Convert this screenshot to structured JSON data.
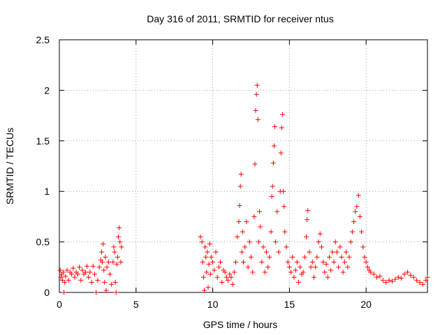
{
  "chart_data": {
    "type": "scatter",
    "title": "Day 316 of 2011, SRMTID for receiver ntus",
    "xlabel": "GPS time / hours",
    "ylabel": "SRMTID / TECUs",
    "xlim": [
      0,
      24
    ],
    "ylim": [
      0,
      2.5
    ],
    "x_ticks": [
      0,
      5,
      10,
      15,
      20
    ],
    "x_tick_labels": [
      "0",
      "5",
      "10",
      "15",
      "20"
    ],
    "y_ticks": [
      0,
      0.5,
      1,
      1.5,
      2,
      2.5
    ],
    "y_tick_labels": [
      "0",
      "0.5",
      "1",
      "1.5",
      "2",
      "2.5"
    ],
    "grid": true,
    "marker": "+",
    "colors": {
      "marker": "#ff0000",
      "grid": "#a0a0a0",
      "axis": "#000000"
    },
    "series": [
      {
        "name": "SRMTID",
        "points": [
          [
            0.05,
            0.22
          ],
          [
            0.1,
            0.15
          ],
          [
            0.15,
            0.18
          ],
          [
            0.2,
            0.12
          ],
          [
            0.25,
            0.2
          ],
          [
            0.3,
            0.0
          ],
          [
            0.35,
            0.1
          ],
          [
            0.4,
            0.16
          ],
          [
            0.5,
            0.22
          ],
          [
            0.6,
            0.12
          ],
          [
            0.7,
            0.2
          ],
          [
            0.8,
            0.18
          ],
          [
            0.9,
            0.24
          ],
          [
            1.0,
            0.15
          ],
          [
            1.1,
            0.2
          ],
          [
            1.2,
            0.18
          ],
          [
            1.3,
            0.25
          ],
          [
            1.4,
            0.12
          ],
          [
            1.5,
            0.22
          ],
          [
            1.6,
            0.18
          ],
          [
            1.7,
            0.2
          ],
          [
            1.8,
            0.26
          ],
          [
            1.9,
            0.15
          ],
          [
            2.0,
            0.2
          ],
          [
            2.1,
            0.1
          ],
          [
            2.2,
            0.26
          ],
          [
            2.3,
            0.18
          ],
          [
            2.4,
            0.0
          ],
          [
            2.5,
            0.12
          ],
          [
            2.6,
            0.25
          ],
          [
            2.7,
            0.32
          ],
          [
            2.75,
            0.4
          ],
          [
            2.8,
            0.3
          ],
          [
            2.85,
            0.48
          ],
          [
            2.9,
            0.22
          ],
          [
            2.95,
            0.1
          ],
          [
            3.0,
            0.35
          ],
          [
            3.05,
            0.02
          ],
          [
            3.1,
            0.25
          ],
          [
            3.2,
            0.3
          ],
          [
            3.3,
            0.18
          ],
          [
            3.4,
            0.08
          ],
          [
            3.5,
            0.3
          ],
          [
            3.55,
            0.45
          ],
          [
            3.6,
            0.4
          ],
          [
            3.65,
            0.1
          ],
          [
            3.7,
            0.0
          ],
          [
            3.75,
            0.28
          ],
          [
            3.8,
            0.35
          ],
          [
            3.85,
            0.55
          ],
          [
            3.9,
            0.64
          ],
          [
            3.95,
            0.5
          ],
          [
            4.0,
            0.3
          ],
          [
            4.05,
            0.45
          ],
          [
            9.2,
            0.55
          ],
          [
            9.3,
            0.5
          ],
          [
            9.35,
            0.3
          ],
          [
            9.4,
            0.15
          ],
          [
            9.45,
            0.02
          ],
          [
            9.5,
            0.45
          ],
          [
            9.55,
            0.35
          ],
          [
            9.6,
            0.2
          ],
          [
            9.65,
            0.4
          ],
          [
            9.7,
            0.05
          ],
          [
            9.75,
            0.28
          ],
          [
            9.8,
            0.48
          ],
          [
            9.85,
            0.18
          ],
          [
            9.9,
            0.35
          ],
          [
            10.0,
            0.3
          ],
          [
            10.1,
            0.22
          ],
          [
            10.2,
            0.4
          ],
          [
            10.3,
            0.15
          ],
          [
            10.4,
            0.25
          ],
          [
            10.5,
            0.3
          ],
          [
            10.6,
            0.1
          ],
          [
            10.7,
            0.22
          ],
          [
            10.8,
            0.2
          ],
          [
            10.9,
            0.15
          ],
          [
            11.0,
            0.12
          ],
          [
            11.1,
            0.18
          ],
          [
            11.2,
            0.15
          ],
          [
            11.3,
            0.08
          ],
          [
            11.4,
            0.2
          ],
          [
            11.5,
            0.3
          ],
          [
            11.6,
            0.55
          ],
          [
            11.7,
            0.7
          ],
          [
            11.75,
            0.86
          ],
          [
            11.8,
            1.05
          ],
          [
            11.85,
            1.17
          ],
          [
            11.9,
            0.4
          ],
          [
            11.95,
            0.6
          ],
          [
            12.0,
            0.3
          ],
          [
            12.1,
            0.45
          ],
          [
            12.2,
            0.7
          ],
          [
            12.3,
            0.25
          ],
          [
            12.4,
            0.5
          ],
          [
            12.5,
            0.35
          ],
          [
            12.6,
            0.2
          ],
          [
            12.7,
            0.75
          ],
          [
            12.75,
            1.27
          ],
          [
            12.8,
            1.8
          ],
          [
            12.85,
            1.96
          ],
          [
            12.9,
            2.05
          ],
          [
            12.95,
            1.71
          ],
          [
            13.0,
            0.5
          ],
          [
            13.05,
            0.8
          ],
          [
            13.1,
            0.65
          ],
          [
            13.2,
            0.3
          ],
          [
            13.3,
            0.45
          ],
          [
            13.4,
            0.2
          ],
          [
            13.5,
            0.4
          ],
          [
            13.6,
            0.25
          ],
          [
            13.7,
            0.35
          ],
          [
            13.8,
            0.6
          ],
          [
            13.85,
            0.95
          ],
          [
            13.9,
            1.05
          ],
          [
            13.95,
            1.28
          ],
          [
            14.0,
            1.45
          ],
          [
            14.05,
            1.64
          ],
          [
            14.1,
            0.5
          ],
          [
            14.2,
            0.8
          ],
          [
            14.3,
            0.4
          ],
          [
            14.4,
            1.0
          ],
          [
            14.45,
            1.38
          ],
          [
            14.5,
            1.63
          ],
          [
            14.55,
            1.76
          ],
          [
            14.6,
            1.0
          ],
          [
            14.65,
            0.85
          ],
          [
            14.7,
            0.6
          ],
          [
            14.8,
            0.45
          ],
          [
            14.9,
            0.3
          ],
          [
            15.0,
            0.25
          ],
          [
            15.1,
            0.2
          ],
          [
            15.2,
            0.35
          ],
          [
            15.3,
            0.15
          ],
          [
            15.4,
            0.22
          ],
          [
            15.5,
            0.3
          ],
          [
            15.6,
            0.1
          ],
          [
            15.7,
            0.25
          ],
          [
            15.8,
            0.18
          ],
          [
            15.9,
            0.2
          ],
          [
            16.0,
            0.35
          ],
          [
            16.1,
            0.55
          ],
          [
            16.15,
            0.72
          ],
          [
            16.2,
            0.81
          ],
          [
            16.3,
            0.4
          ],
          [
            16.4,
            0.25
          ],
          [
            16.5,
            0.3
          ],
          [
            16.6,
            0.15
          ],
          [
            16.7,
            0.25
          ],
          [
            16.8,
            0.35
          ],
          [
            16.9,
            0.5
          ],
          [
            17.0,
            0.58
          ],
          [
            17.1,
            0.45
          ],
          [
            17.2,
            0.3
          ],
          [
            17.3,
            0.2
          ],
          [
            17.4,
            0.28
          ],
          [
            17.5,
            0.15
          ],
          [
            17.6,
            0.35
          ],
          [
            17.7,
            0.22
          ],
          [
            17.8,
            0.4
          ],
          [
            17.9,
            0.3
          ],
          [
            18.0,
            0.5
          ],
          [
            18.1,
            0.4
          ],
          [
            18.2,
            0.25
          ],
          [
            18.3,
            0.45
          ],
          [
            18.4,
            0.35
          ],
          [
            18.5,
            0.2
          ],
          [
            18.6,
            0.3
          ],
          [
            18.7,
            0.4
          ],
          [
            18.8,
            0.25
          ],
          [
            18.9,
            0.35
          ],
          [
            19.0,
            0.5
          ],
          [
            19.1,
            0.6
          ],
          [
            19.2,
            0.7
          ],
          [
            19.3,
            0.8
          ],
          [
            19.4,
            0.85
          ],
          [
            19.5,
            0.96
          ],
          [
            19.6,
            0.75
          ],
          [
            19.7,
            0.6
          ],
          [
            19.8,
            0.45
          ],
          [
            19.9,
            0.35
          ],
          [
            20.0,
            0.3
          ],
          [
            20.1,
            0.25
          ],
          [
            20.2,
            0.22
          ],
          [
            20.3,
            0.2
          ],
          [
            20.5,
            0.18
          ],
          [
            20.7,
            0.15
          ],
          [
            20.9,
            0.16
          ],
          [
            21.1,
            0.12
          ],
          [
            21.3,
            0.1
          ],
          [
            21.5,
            0.12
          ],
          [
            21.7,
            0.11
          ],
          [
            21.9,
            0.13
          ],
          [
            22.1,
            0.15
          ],
          [
            22.3,
            0.14
          ],
          [
            22.5,
            0.18
          ],
          [
            22.7,
            0.2
          ],
          [
            22.9,
            0.17
          ],
          [
            23.1,
            0.15
          ],
          [
            23.3,
            0.12
          ],
          [
            23.5,
            0.1
          ],
          [
            23.7,
            0.08
          ],
          [
            23.9,
            0.12
          ],
          [
            24.0,
            0.15
          ]
        ]
      }
    ]
  }
}
